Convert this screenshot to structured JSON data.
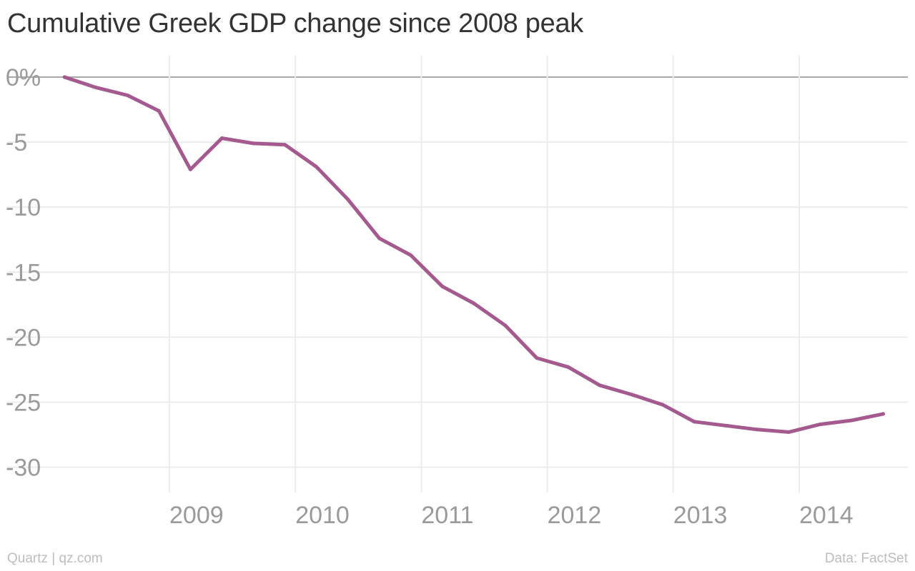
{
  "title": "Cumulative Greek GDP change since 2008 peak",
  "footer": {
    "credit": "Quartz | qz.com",
    "source": "Data: FactSet"
  },
  "colors": {
    "line": "#a45a8e",
    "grid": "#ececec",
    "zero_line": "#a8a8a8",
    "tick_text": "#9a9a9a"
  },
  "chart_data": {
    "type": "line",
    "title": "Cumulative Greek GDP change since 2008 peak",
    "xlabel": "",
    "ylabel": "",
    "x_ticks": [
      "2009",
      "2010",
      "2011",
      "2012",
      "2013",
      "2014"
    ],
    "y_ticks": [
      "0%",
      "-5",
      "-10",
      "-15",
      "-20",
      "-25",
      "-30"
    ],
    "y_tick_values": [
      0,
      -5,
      -10,
      -15,
      -20,
      -25,
      -30
    ],
    "ylim": [
      -32,
      1.5
    ],
    "xlim": [
      "2008-01",
      "2014-10"
    ],
    "grid": true,
    "series": [
      {
        "x": [
          "2008-03",
          "2008-06",
          "2008-09",
          "2008-12",
          "2009-03",
          "2009-06",
          "2009-09",
          "2009-12",
          "2010-03",
          "2010-06",
          "2010-09",
          "2010-12",
          "2011-03",
          "2011-06",
          "2011-09",
          "2011-12",
          "2012-03",
          "2012-06",
          "2012-09",
          "2012-12",
          "2013-03",
          "2013-06",
          "2013-09",
          "2013-12",
          "2014-03",
          "2014-06",
          "2014-09"
        ],
        "values": [
          0,
          -0.8,
          -1.4,
          -2.6,
          -7.1,
          -4.7,
          -5.1,
          -5.2,
          -6.9,
          -9.4,
          -12.4,
          -13.7,
          -16.1,
          -17.4,
          -19.1,
          -21.6,
          -22.3,
          -23.7,
          -24.4,
          -25.2,
          -26.5,
          -26.8,
          -27.1,
          -27.3,
          -26.7,
          -26.4,
          -25.9
        ]
      }
    ]
  }
}
